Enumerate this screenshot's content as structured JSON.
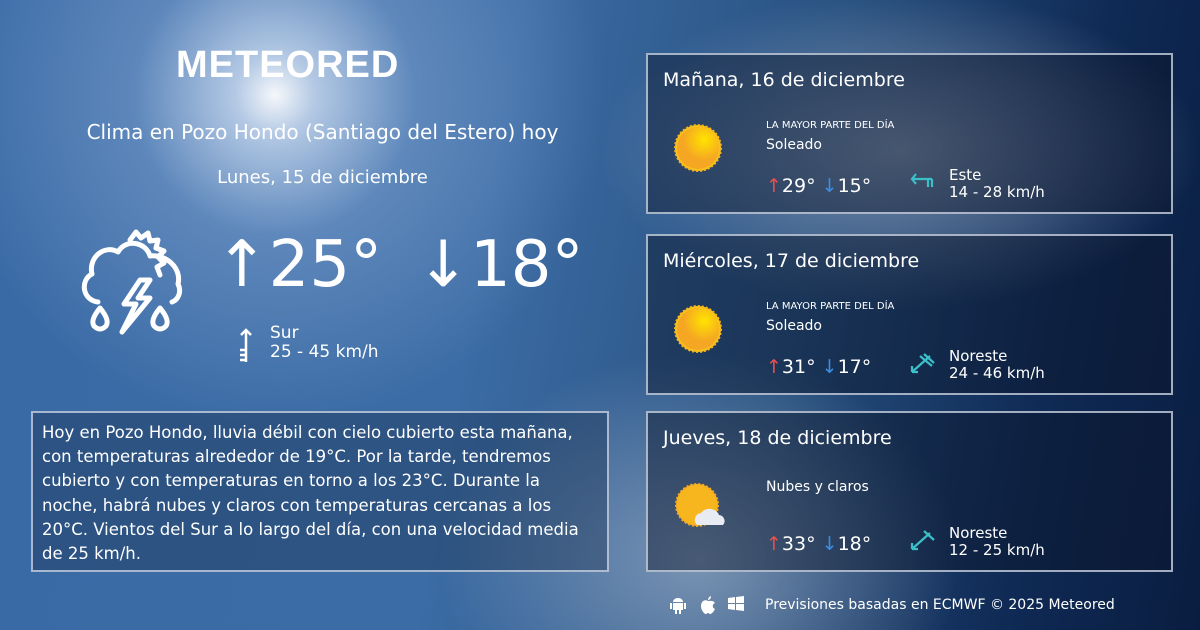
{
  "brand": "METEORED",
  "today": {
    "title": "Clima en Pozo Hondo (Santiago del Estero) hoy",
    "date": "Lunes, 15 de diciembre",
    "max": "25°",
    "min": "18°",
    "wind_dir": "Sur",
    "wind_speed": "25 - 45 km/h",
    "icon": "storm-rain-sun-icon",
    "description": "Hoy en Pozo Hondo, lluvia débil con cielo cubierto esta mañana, con temperaturas alrededor de 19°C. Por la tarde, tendremos cubierto y con temperaturas en torno a los 23°C. Durante la noche, habrá nubes y claros  con temperaturas cercanas a los 20°C. Vientos del Sur a lo largo del día, con una velocidad media de 25 km/h."
  },
  "forecast": [
    {
      "date": "Mañana, 16 de diciembre",
      "note": "LA MAYOR PARTE DEL DÍA",
      "condition": "Soleado",
      "max": "29°",
      "min": "15°",
      "wind_dir": "Este",
      "wind_speed": "14 - 28 km/h",
      "icon": "sun-icon"
    },
    {
      "date": "Miércoles, 17 de diciembre",
      "note": "LA MAYOR PARTE DEL DÍA",
      "condition": "Soleado",
      "max": "31°",
      "min": "17°",
      "wind_dir": "Noreste",
      "wind_speed": "24 - 46 km/h",
      "icon": "sun-icon"
    },
    {
      "date": "Jueves, 18 de diciembre",
      "note": "",
      "condition": "Nubes y claros",
      "max": "33°",
      "min": "18°",
      "wind_dir": "Noreste",
      "wind_speed": "12 - 25 km/h",
      "icon": "sun-cloud-icon"
    }
  ],
  "footer": "Previsiones basadas en ECMWF © 2025 Meteored",
  "colors": {
    "max_arrow": "#e8504f",
    "min_arrow": "#3b8ee0",
    "wind_arrow": "#3cc0c8",
    "sun": "#f7b51e"
  }
}
